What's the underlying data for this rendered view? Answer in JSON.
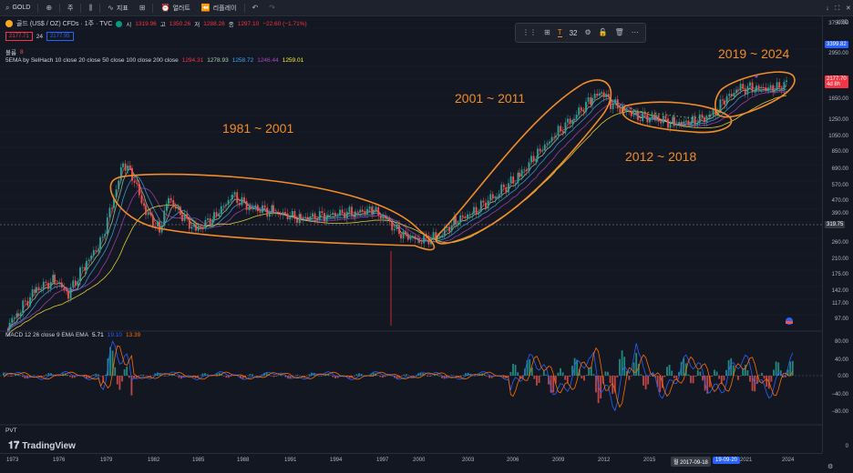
{
  "topbar": {
    "symbol": "GOLD",
    "add_label": "+",
    "interval": "주",
    "indicators_label": "지표",
    "alert_label": "얼러트",
    "replay_label": "리플레이",
    "currency": "USD"
  },
  "legend": {
    "title": "골드 (US$ / OZ) CFDs · 1주 · TVC",
    "ohlc_open_label": "시",
    "ohlc_open": "1319.96",
    "ohlc_high_label": "고",
    "ohlc_high": "1350.26",
    "ohlc_low_label": "저",
    "ohlc_low": "1288.28",
    "ohlc_close_label": "종",
    "ohlc_close": "1297.10",
    "ohlc_change": "−22.60 (−1.71%)",
    "bid": "2177.71",
    "spread": "24",
    "ask": "2177.95",
    "volume_label": "볼륨",
    "volume_value": "8",
    "sema_label": "5EMA by SelHach 10 close 20 close 50 close 100 close 200 close",
    "sema_values": [
      "1294.31",
      "1278.93",
      "1258.72",
      "1246.44",
      "1259.01"
    ],
    "sema_colors": [
      "#f23645",
      "#a5d6a7",
      "#42a5f5",
      "#ab47bc",
      "#ffeb3b"
    ],
    "macd_label": "MACD 12 26 close 9 EMA EMA",
    "macd_values": [
      "5.71",
      "19.10",
      "13.39"
    ],
    "macd_colors": [
      "#ffffff",
      "#2962ff",
      "#ff6d00"
    ],
    "pvt_label": "PVT",
    "pvt_value": "0"
  },
  "drawing_toolbar": {
    "width_value": "32"
  },
  "price_axis": {
    "ticks": [
      "3750.00",
      "3399.82",
      "2950.00",
      "2177.70",
      "4d 8h",
      "1650.00",
      "1250.00",
      "1050.00",
      "850.00",
      "690.00",
      "570.00",
      "470.00",
      "390.00",
      "319.75",
      "260.00",
      "210.00",
      "175.00",
      "142.00",
      "117.00",
      "97.00"
    ],
    "macd_ticks": [
      "80.00",
      "40.00",
      "0.00",
      "−40.00",
      "−80.00"
    ],
    "pvt_tick": "0"
  },
  "time_axis": {
    "ticks": [
      "1973",
      "1976",
      "1979",
      "1982",
      "1985",
      "1988",
      "1991",
      "1994",
      "1997",
      "2000",
      "2003",
      "2006",
      "2009",
      "2012",
      "2015",
      "2021",
      "2024"
    ],
    "crosshair_date": "월 2017-09-18",
    "crosshair_date2": "19-09-20"
  },
  "annotations": [
    "1981 ~ 2001",
    "2001 ~ 2011",
    "2012 ~ 2018",
    "2019 ~ 2024"
  ],
  "branding": {
    "logo_text": "TradingView"
  },
  "colors": {
    "accent_orange": "#f28c28",
    "up": "#26a69a",
    "down": "#ef5350",
    "price_red": "#f23645",
    "price_blue": "#2962ff"
  }
}
